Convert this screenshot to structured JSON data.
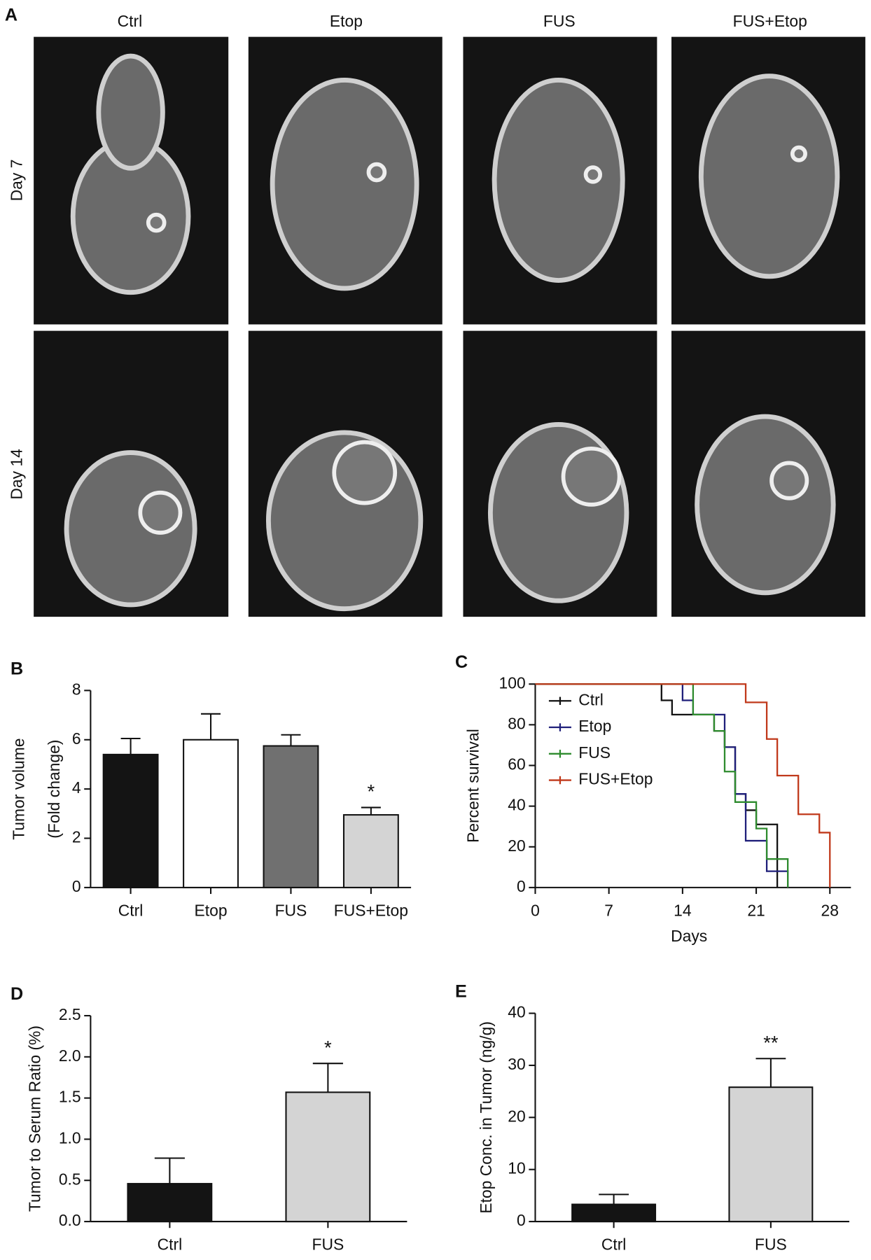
{
  "panel_a": {
    "panel": "A",
    "columns": [
      "Ctrl",
      "Etop",
      "FUS",
      "FUS+Etop"
    ],
    "rows": [
      "Day 7",
      "Day 14"
    ]
  },
  "chart_data": [
    {
      "type": "bar",
      "panel": "B",
      "ylabel": [
        "Tumor volume",
        "(Fold change)"
      ],
      "categories": [
        "Ctrl",
        "Etop",
        "FUS",
        "FUS+Etop"
      ],
      "values": [
        5.4,
        6.0,
        5.75,
        2.95
      ],
      "errors": [
        0.65,
        1.05,
        0.45,
        0.3
      ],
      "colors": [
        "#141414",
        "#ffffff",
        "#707070",
        "#d4d4d4"
      ],
      "annotations": [
        null,
        null,
        null,
        "*"
      ],
      "ylim": [
        0,
        8
      ],
      "yticks": [
        0,
        2,
        4,
        6,
        8
      ]
    },
    {
      "type": "step",
      "panel": "C",
      "ylabel": "Percent survival",
      "xlabel": "Days",
      "series": [
        {
          "name": "Ctrl",
          "color": "#111111",
          "x": [
            0,
            12,
            13,
            17,
            18,
            19,
            20,
            21,
            23
          ],
          "values": [
            100,
            92,
            85,
            77,
            69,
            46,
            38,
            31,
            0
          ]
        },
        {
          "name": "Etop",
          "color": "#1f1f7a",
          "x": [
            0,
            14,
            15,
            18,
            19,
            20,
            22,
            24
          ],
          "values": [
            100,
            92,
            85,
            69,
            46,
            23,
            8,
            0
          ]
        },
        {
          "name": "FUS",
          "color": "#2e8b2e",
          "x": [
            0,
            15,
            17,
            18,
            19,
            21,
            22,
            24
          ],
          "values": [
            100,
            85,
            77,
            57,
            42,
            29,
            14,
            0
          ]
        },
        {
          "name": "FUS+Etop",
          "color": "#c0391b",
          "x": [
            0,
            20,
            22,
            23,
            25,
            27,
            28
          ],
          "values": [
            100,
            91,
            73,
            55,
            36,
            27,
            0
          ]
        }
      ],
      "xlim": [
        0,
        30
      ],
      "xticks": [
        0,
        7,
        14,
        21,
        28
      ],
      "ylim": [
        0,
        100
      ],
      "yticks": [
        0,
        20,
        40,
        60,
        80,
        100
      ]
    },
    {
      "type": "bar",
      "panel": "D",
      "ylabel": [
        "Tumor to Serum Ratio (%)"
      ],
      "categories": [
        "Ctrl",
        "FUS"
      ],
      "values": [
        0.46,
        1.57
      ],
      "errors": [
        0.31,
        0.35
      ],
      "colors": [
        "#141414",
        "#d4d4d4"
      ],
      "annotations": [
        null,
        "*"
      ],
      "ylim": [
        0,
        2.5
      ],
      "yticks": [
        {
          "value": 0,
          "label": "0.0"
        },
        0.5,
        {
          "value": 1,
          "label": "1.0"
        },
        1.5,
        {
          "value": 2,
          "label": "2.0"
        },
        2.5
      ]
    },
    {
      "type": "bar",
      "panel": "E",
      "ylabel": [
        "Etop Conc. in Tumor (ng/g)"
      ],
      "categories": [
        "Ctrl",
        "FUS"
      ],
      "values": [
        3.3,
        25.8
      ],
      "errors": [
        1.9,
        5.5
      ],
      "colors": [
        "#141414",
        "#d4d4d4"
      ],
      "annotations": [
        null,
        "**"
      ],
      "ylim": [
        0,
        40
      ],
      "yticks": [
        0,
        10,
        20,
        30,
        40
      ]
    }
  ]
}
